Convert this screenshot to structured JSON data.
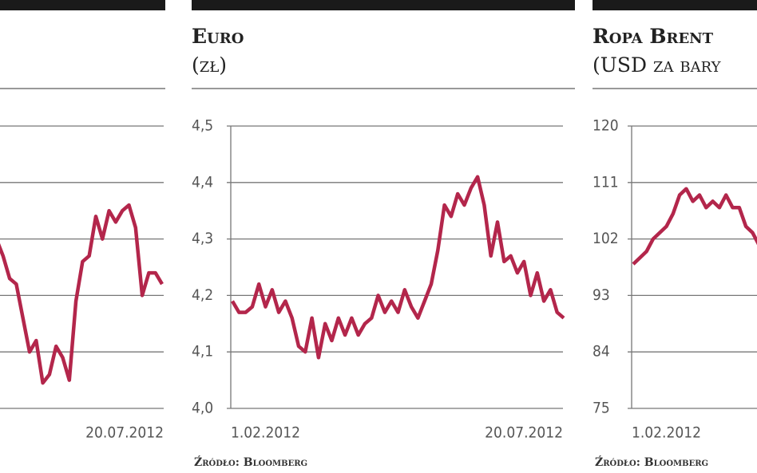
{
  "chart_data": [
    {
      "type": "line",
      "color": "#b3264b",
      "ylim": [
        0,
        5
      ],
      "grid": true,
      "categories": [
        null,
        null,
        null,
        null,
        null,
        null,
        null,
        null,
        null,
        null,
        null,
        null,
        null,
        null,
        null,
        null,
        null,
        null,
        null,
        null,
        null,
        null,
        null,
        null,
        null,
        "20.07.2012"
      ],
      "values": [
        3.0,
        2.7,
        2.3,
        2.2,
        1.6,
        1.0,
        1.2,
        0.45,
        0.6,
        1.1,
        0.9,
        0.5,
        1.9,
        2.6,
        2.7,
        3.4,
        3.0,
        3.5,
        3.3,
        3.5,
        3.6,
        3.2,
        2.0,
        2.4,
        2.4,
        2.2
      ]
    },
    {
      "type": "line",
      "title": "Euro",
      "subtitle": "(zł)",
      "color": "#b3264b",
      "grid": true,
      "source": "Źródło: Bloomberg",
      "ylim": [
        4.0,
        4.5
      ],
      "yticks": [
        {
          "value": 4.0,
          "label": "4,0"
        },
        {
          "value": 4.1,
          "label": "4,1"
        },
        {
          "value": 4.2,
          "label": "4,2"
        },
        {
          "value": 4.3,
          "label": "4,3"
        },
        {
          "value": 4.4,
          "label": "4,4"
        },
        {
          "value": 4.5,
          "label": "4,5"
        }
      ],
      "categories": [
        "1.02.2012",
        null,
        null,
        null,
        null,
        null,
        null,
        null,
        null,
        null,
        null,
        null,
        null,
        null,
        null,
        null,
        null,
        null,
        null,
        null,
        null,
        null,
        null,
        null,
        null,
        null,
        null,
        null,
        null,
        null,
        null,
        null,
        null,
        null,
        null,
        null,
        null,
        null,
        null,
        null,
        null,
        null,
        null,
        null,
        null,
        null,
        null,
        null,
        null,
        null,
        "20.07.2012"
      ],
      "values": [
        4.19,
        4.17,
        4.17,
        4.18,
        4.22,
        4.18,
        4.21,
        4.17,
        4.19,
        4.16,
        4.11,
        4.1,
        4.16,
        4.09,
        4.15,
        4.12,
        4.16,
        4.13,
        4.16,
        4.13,
        4.15,
        4.16,
        4.2,
        4.17,
        4.19,
        4.17,
        4.21,
        4.18,
        4.16,
        4.19,
        4.22,
        4.28,
        4.36,
        4.34,
        4.38,
        4.36,
        4.39,
        4.41,
        4.36,
        4.27,
        4.33,
        4.26,
        4.27,
        4.24,
        4.26,
        4.2,
        4.24,
        4.19,
        4.21,
        4.17,
        4.16
      ]
    },
    {
      "type": "line",
      "title": "Ropa Brent",
      "subtitle": "(USD za bary",
      "color": "#b3264b",
      "grid": true,
      "source": "Źródło: Bloomberg",
      "ylim": [
        75,
        120
      ],
      "yticks": [
        75,
        84,
        93,
        102,
        111,
        120
      ],
      "categories": [
        "1.02.2012",
        null,
        null,
        null,
        null,
        null,
        null,
        null,
        null,
        null,
        null,
        null,
        null,
        null,
        null,
        null,
        null,
        null,
        null,
        null
      ],
      "values": [
        98,
        99,
        100,
        102,
        103,
        104,
        106,
        109,
        110,
        108,
        109,
        107,
        108,
        107,
        109,
        107,
        107,
        104,
        103,
        101
      ]
    }
  ]
}
